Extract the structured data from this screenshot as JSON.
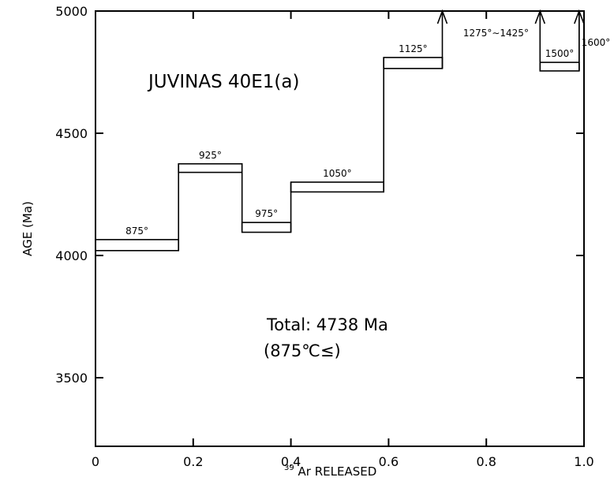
{
  "chart_data": {
    "type": "step",
    "xlabel_sup": "39",
    "xlabel": "Ar  RELEASED",
    "ylabel": "AGE (Ma)",
    "xlim": [
      0,
      1.0
    ],
    "ylim": [
      3300,
      5000
    ],
    "xticks": [
      0,
      0.2,
      0.4,
      0.6,
      0.8,
      1.0
    ],
    "xtick_labels": [
      "0",
      "0.2",
      "0.4",
      "0.6",
      "0.8",
      "1.0"
    ],
    "yticks": [
      3500,
      4000,
      4500,
      5000
    ],
    "ytick_labels": [
      "3500",
      "4000",
      "4500",
      "5000"
    ],
    "sample_label": "JUVINAS 40E1(a)",
    "total_line1": "Total: 4738 Ma",
    "total_line2": "(875℃≤)",
    "steps": [
      {
        "label": "875°",
        "x0": 0.0,
        "x1": 0.17,
        "age_low": 4020,
        "age_high": 4065
      },
      {
        "label": "925°",
        "x0": 0.17,
        "x1": 0.3,
        "age_low": 4340,
        "age_high": 4375
      },
      {
        "label": "975°",
        "x0": 0.3,
        "x1": 0.4,
        "age_low": 4095,
        "age_high": 4135
      },
      {
        "label": "1050°",
        "x0": 0.4,
        "x1": 0.59,
        "age_low": 4260,
        "age_high": 4300
      },
      {
        "label": "1125°",
        "x0": 0.59,
        "x1": 0.71,
        "age_low": 4765,
        "age_high": 4810
      },
      {
        "label": "1275°∼1425°",
        "x0": 0.71,
        "x1": 0.91,
        "age_low": 5000,
        "age_high": 5000,
        "exceeds_axis": true
      },
      {
        "label": "1500°",
        "x0": 0.91,
        "x1": 0.99,
        "age_low": 4755,
        "age_high": 4790
      },
      {
        "label": "1600°",
        "x0": 0.99,
        "x1": 1.0,
        "age_low": 5000,
        "age_high": 5000,
        "exceeds_axis": true
      }
    ]
  }
}
